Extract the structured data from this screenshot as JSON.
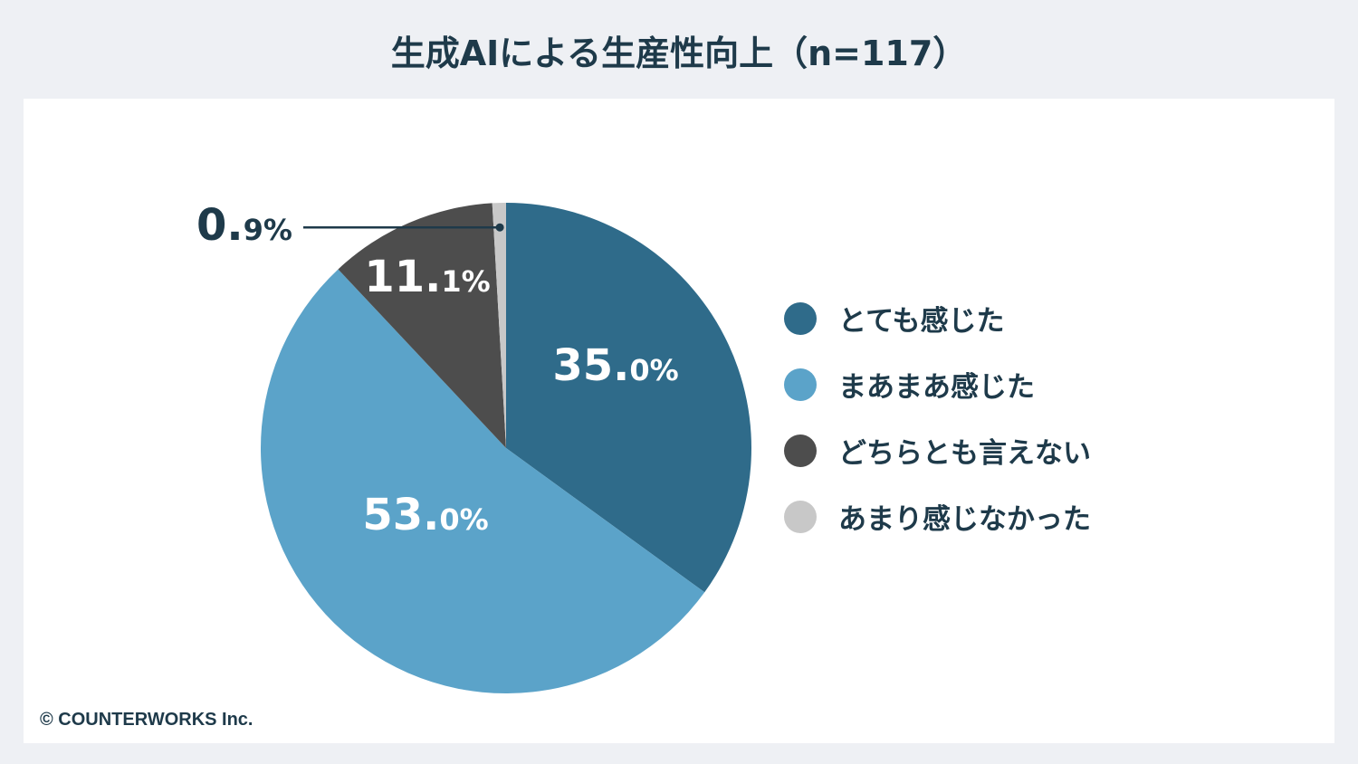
{
  "title": "生成AIによる生産性向上（n=117）",
  "copyright": "© COUNTERWORKS Inc.",
  "chart_data": {
    "type": "pie",
    "title": "生成AIによる生産性向上（n=117）",
    "start": "top",
    "direction": "clockwise",
    "categories": [
      "とても感じた",
      "まあまあ感じた",
      "どちらとも言えない",
      "あまり感じなかった"
    ],
    "values": [
      35.0,
      53.0,
      11.1,
      0.9
    ],
    "labels": [
      "35.0%",
      "53.0%",
      "11.1%",
      "0.9%"
    ],
    "colors": [
      "#2f6b8a",
      "#5ba3c9",
      "#4d4d4d",
      "#c8c8c8"
    ],
    "legend_position": "right"
  }
}
